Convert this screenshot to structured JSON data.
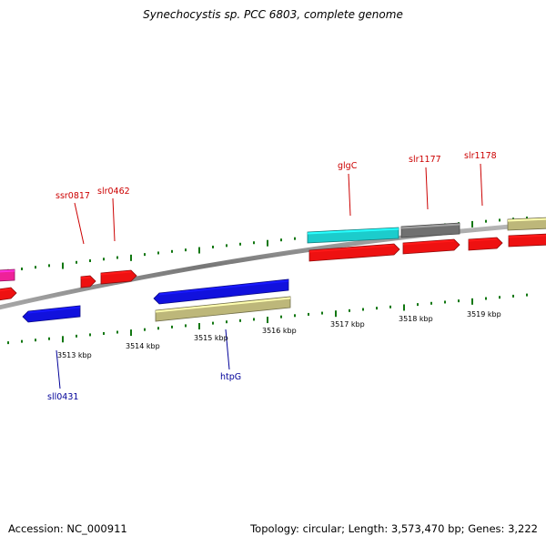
{
  "title": "Synechocystis sp. PCC 6803, complete genome",
  "footer": {
    "accession": "Accession: NC_000911",
    "summary": "Topology: circular; Length: 3,573,470 bp; Genes: 3,222"
  },
  "colors": {
    "red": "#ee1111",
    "blue": "#1111dd",
    "cyan": "#1ccccc",
    "gray": "#707070",
    "khaki": "#bdb77a",
    "magenta": "#ee2299",
    "backbone": "#888888",
    "tick": "#117711",
    "label_red": "#cc0000",
    "label_blue": "#000099"
  },
  "scale_labels": [
    "3513 kbp",
    "3514 kbp",
    "3515 kbp",
    "3516 kbp",
    "3517 kbp",
    "3518 kbp",
    "3519 kbp"
  ],
  "gene_labels": {
    "top": [
      "ssr0817",
      "slr0462",
      "glgC",
      "slr1177",
      "slr1178"
    ],
    "bottom": [
      "sll0431",
      "htpG"
    ]
  }
}
